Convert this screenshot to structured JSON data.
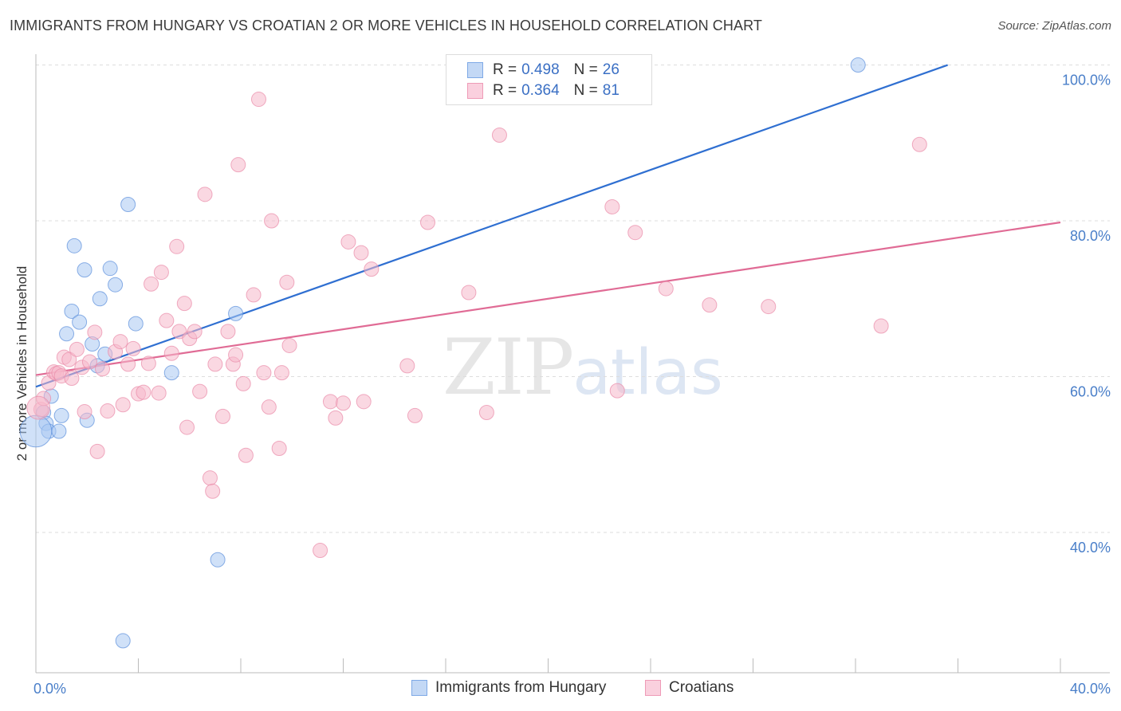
{
  "header": {
    "title": "IMMIGRANTS FROM HUNGARY VS CROATIAN 2 OR MORE VEHICLES IN HOUSEHOLD CORRELATION CHART",
    "source": "Source: ZipAtlas.com"
  },
  "watermark": {
    "zip": "ZIP",
    "atlas": "atlas"
  },
  "legend": {
    "items": [
      {
        "r_label": "R =",
        "r_value": "0.498",
        "n_label": "N =",
        "n_value": "26",
        "color": "#a9c8f2"
      },
      {
        "r_label": "R =",
        "r_value": "0.364",
        "n_label": "N =",
        "n_value": "81",
        "color": "#f5b8cb"
      }
    ]
  },
  "bottom_legend": {
    "items": [
      {
        "label": "Immigrants from Hungary",
        "color": "#a9c8f2"
      },
      {
        "label": "Croatians",
        "color": "#f5b8cb"
      }
    ]
  },
  "chart_data": {
    "type": "scatter",
    "title": "IMMIGRANTS FROM HUNGARY VS CROATIAN 2 OR MORE VEHICLES IN HOUSEHOLD CORRELATION CHART",
    "xlabel": "",
    "ylabel": "2 or more Vehicles in Household",
    "xlim": [
      0,
      40
    ],
    "ylim": [
      22,
      102
    ],
    "x_tick_labels": [
      "0.0%",
      "40.0%"
    ],
    "y_ticks": [
      40,
      60,
      80,
      100
    ],
    "y_tick_labels": [
      "40.0%",
      "60.0%",
      "80.0%",
      "100.0%"
    ],
    "series": [
      {
        "name": "Immigrants from Hungary",
        "color": "#5b8fdb",
        "fill": "#a9c8f2",
        "trend": {
          "x0": 0.0,
          "y0": 58.7,
          "x1": 35.6,
          "y1": 100.0,
          "color": "#2f6fd1"
        },
        "points": [
          [
            0.3,
            55.4
          ],
          [
            0.4,
            54.0
          ],
          [
            0.5,
            53.0
          ],
          [
            0.6,
            57.5
          ],
          [
            0.9,
            53.0
          ],
          [
            1.0,
            55.0
          ],
          [
            1.2,
            65.5
          ],
          [
            1.4,
            68.4
          ],
          [
            1.5,
            76.8
          ],
          [
            1.7,
            67.0
          ],
          [
            1.9,
            73.7
          ],
          [
            2.0,
            54.4
          ],
          [
            2.2,
            64.2
          ],
          [
            2.4,
            61.4
          ],
          [
            2.5,
            70.0
          ],
          [
            2.7,
            62.9
          ],
          [
            2.9,
            73.9
          ],
          [
            3.1,
            71.8
          ],
          [
            3.4,
            26.1
          ],
          [
            3.6,
            82.1
          ],
          [
            3.9,
            66.8
          ],
          [
            5.3,
            60.5
          ],
          [
            7.1,
            36.5
          ],
          [
            7.8,
            68.1
          ],
          [
            32.1,
            100.0
          ],
          [
            0.0,
            53.0
          ]
        ],
        "point_sizes": [
          1,
          1,
          1,
          1,
          1,
          1,
          1,
          1,
          1,
          1,
          1,
          1,
          1,
          1,
          1,
          1,
          1,
          1,
          1,
          1,
          1,
          1,
          1,
          1,
          1,
          2.2
        ]
      },
      {
        "name": "Croatians",
        "color": "#e98aa8",
        "fill": "#f5b8cb",
        "trend": {
          "x0": 0.0,
          "y0": 60.2,
          "x1": 40.0,
          "y1": 79.8,
          "color": "#e06b95"
        },
        "points": [
          [
            0.2,
            55.8
          ],
          [
            0.3,
            57.2
          ],
          [
            0.5,
            59.2
          ],
          [
            0.7,
            60.6
          ],
          [
            0.8,
            60.4
          ],
          [
            0.9,
            60.5
          ],
          [
            1.0,
            60.1
          ],
          [
            1.1,
            62.5
          ],
          [
            1.3,
            62.2
          ],
          [
            1.4,
            59.8
          ],
          [
            1.6,
            63.5
          ],
          [
            1.8,
            61.2
          ],
          [
            1.9,
            55.5
          ],
          [
            2.1,
            61.9
          ],
          [
            2.3,
            65.7
          ],
          [
            2.4,
            50.4
          ],
          [
            2.6,
            61.0
          ],
          [
            2.8,
            55.6
          ],
          [
            3.1,
            63.2
          ],
          [
            3.3,
            64.5
          ],
          [
            3.4,
            56.4
          ],
          [
            3.6,
            61.6
          ],
          [
            3.8,
            63.6
          ],
          [
            4.0,
            57.8
          ],
          [
            4.2,
            58.0
          ],
          [
            4.4,
            61.7
          ],
          [
            4.5,
            71.9
          ],
          [
            4.8,
            57.9
          ],
          [
            4.9,
            73.4
          ],
          [
            5.1,
            67.2
          ],
          [
            5.3,
            63.0
          ],
          [
            5.5,
            76.7
          ],
          [
            5.6,
            65.8
          ],
          [
            5.8,
            69.4
          ],
          [
            5.9,
            53.5
          ],
          [
            6.0,
            64.9
          ],
          [
            6.2,
            65.8
          ],
          [
            6.4,
            58.1
          ],
          [
            6.6,
            83.4
          ],
          [
            6.8,
            47.0
          ],
          [
            6.9,
            45.3
          ],
          [
            7.0,
            61.6
          ],
          [
            7.3,
            54.9
          ],
          [
            7.5,
            65.8
          ],
          [
            7.7,
            61.6
          ],
          [
            7.8,
            62.8
          ],
          [
            7.9,
            87.2
          ],
          [
            8.1,
            59.1
          ],
          [
            8.2,
            49.9
          ],
          [
            8.5,
            70.5
          ],
          [
            8.7,
            95.6
          ],
          [
            8.9,
            60.5
          ],
          [
            9.1,
            56.1
          ],
          [
            9.2,
            80.0
          ],
          [
            9.5,
            50.8
          ],
          [
            9.6,
            60.5
          ],
          [
            9.8,
            72.1
          ],
          [
            9.9,
            64.0
          ],
          [
            11.1,
            37.7
          ],
          [
            11.5,
            56.8
          ],
          [
            11.7,
            54.7
          ],
          [
            12.0,
            56.6
          ],
          [
            12.2,
            77.3
          ],
          [
            12.7,
            75.9
          ],
          [
            12.8,
            56.8
          ],
          [
            13.1,
            73.8
          ],
          [
            14.5,
            61.4
          ],
          [
            14.8,
            55.0
          ],
          [
            15.3,
            79.8
          ],
          [
            16.9,
            70.8
          ],
          [
            17.6,
            55.4
          ],
          [
            18.1,
            91.0
          ],
          [
            22.5,
            81.8
          ],
          [
            22.7,
            58.2
          ],
          [
            23.4,
            78.5
          ],
          [
            24.6,
            71.3
          ],
          [
            26.3,
            69.2
          ],
          [
            28.6,
            69.0
          ],
          [
            33.0,
            66.5
          ],
          [
            34.5,
            89.8
          ],
          [
            0.1,
            56.0
          ]
        ],
        "point_sizes": [
          1,
          1,
          1,
          1,
          1,
          1,
          1,
          1,
          1,
          1,
          1,
          1,
          1,
          1,
          1,
          1,
          1,
          1,
          1,
          1,
          1,
          1,
          1,
          1,
          1,
          1,
          1,
          1,
          1,
          1,
          1,
          1,
          1,
          1,
          1,
          1,
          1,
          1,
          1,
          1,
          1,
          1,
          1,
          1,
          1,
          1,
          1,
          1,
          1,
          1,
          1,
          1,
          1,
          1,
          1,
          1,
          1,
          1,
          1,
          1,
          1,
          1,
          1,
          1,
          1,
          1,
          1,
          1,
          1,
          1,
          1,
          1,
          1,
          1,
          1,
          1,
          1,
          1,
          1,
          1,
          1.6
        ]
      }
    ]
  }
}
